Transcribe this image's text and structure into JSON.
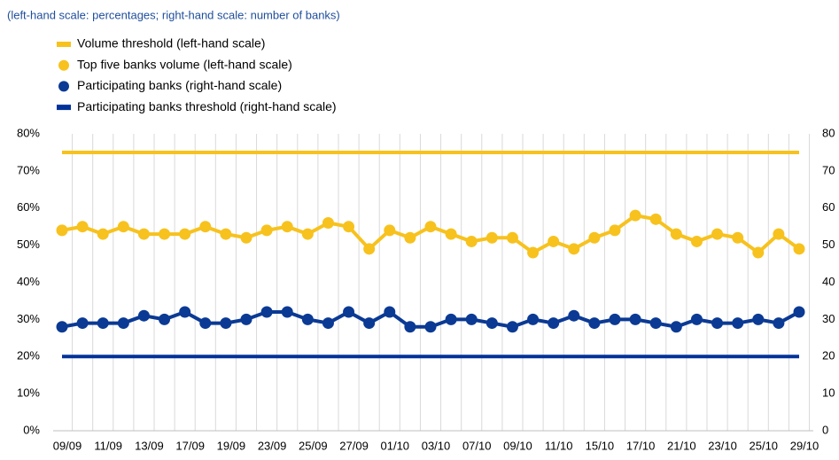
{
  "chart_data": {
    "type": "line",
    "subtitle": "(left-hand scale: percentages; right-hand scale: number of banks)",
    "categories": [
      "09/09",
      null,
      "11/09",
      null,
      "13/09",
      null,
      "17/09",
      null,
      "19/09",
      null,
      "23/09",
      null,
      "25/09",
      null,
      "27/09",
      null,
      "01/10",
      null,
      "03/10",
      null,
      "07/10",
      null,
      "09/10",
      null,
      "11/10",
      null,
      "15/10",
      null,
      "17/10",
      null,
      "21/10",
      null,
      "23/10",
      null,
      "25/10",
      null,
      "29/10"
    ],
    "series": [
      {
        "name": "Volume threshold (left-hand scale)",
        "color": "#f7c21e",
        "style": "line",
        "axis": "y",
        "values": [
          75,
          75,
          75,
          75,
          75,
          75,
          75,
          75,
          75,
          75,
          75,
          75,
          75,
          75,
          75,
          75,
          75,
          75,
          75,
          75,
          75,
          75,
          75,
          75,
          75,
          75,
          75,
          75,
          75,
          75,
          75,
          75,
          75,
          75,
          75,
          75,
          75
        ]
      },
      {
        "name": "Top five banks volume (left-hand scale)",
        "color": "#f7c21e",
        "style": "line-markers",
        "axis": "y",
        "values": [
          54,
          55,
          53,
          55,
          53,
          53,
          53,
          55,
          53,
          52,
          54,
          55,
          53,
          56,
          55,
          49,
          54,
          52,
          55,
          53,
          51,
          52,
          52,
          48,
          51,
          49,
          52,
          54,
          58,
          57,
          53,
          51,
          53,
          52,
          48,
          53,
          49
        ]
      },
      {
        "name": "Participating banks (right-hand scale)",
        "color": "#0b3a94",
        "style": "line-markers",
        "axis": "y2",
        "values": [
          28,
          29,
          29,
          29,
          31,
          30,
          32,
          29,
          29,
          30,
          32,
          32,
          30,
          29,
          32,
          29,
          32,
          28,
          28,
          30,
          30,
          29,
          28,
          30,
          29,
          31,
          29,
          30,
          30,
          29,
          28,
          30,
          29,
          29,
          30,
          29,
          32
        ]
      },
      {
        "name": "Participating banks threshold (right-hand scale)",
        "color": "#003299",
        "style": "line",
        "axis": "y2",
        "values": [
          20,
          20,
          20,
          20,
          20,
          20,
          20,
          20,
          20,
          20,
          20,
          20,
          20,
          20,
          20,
          20,
          20,
          20,
          20,
          20,
          20,
          20,
          20,
          20,
          20,
          20,
          20,
          20,
          20,
          20,
          20,
          20,
          20,
          20,
          20,
          20,
          20
        ]
      }
    ],
    "ylim": [
      0,
      80
    ],
    "yticks": [
      {
        "value": 0,
        "label": "0%"
      },
      {
        "value": 10,
        "label": "10%"
      },
      {
        "value": 20,
        "label": "20%"
      },
      {
        "value": 30,
        "label": "30%"
      },
      {
        "value": 40,
        "label": "40%"
      },
      {
        "value": 50,
        "label": "50%"
      },
      {
        "value": 60,
        "label": "60%"
      },
      {
        "value": 70,
        "label": "70%"
      },
      {
        "value": 80,
        "label": "80%"
      }
    ],
    "y2lim": [
      0,
      80
    ],
    "y2ticks": [
      0,
      10,
      20,
      30,
      40,
      50,
      60,
      70,
      80
    ],
    "grid": "x"
  }
}
